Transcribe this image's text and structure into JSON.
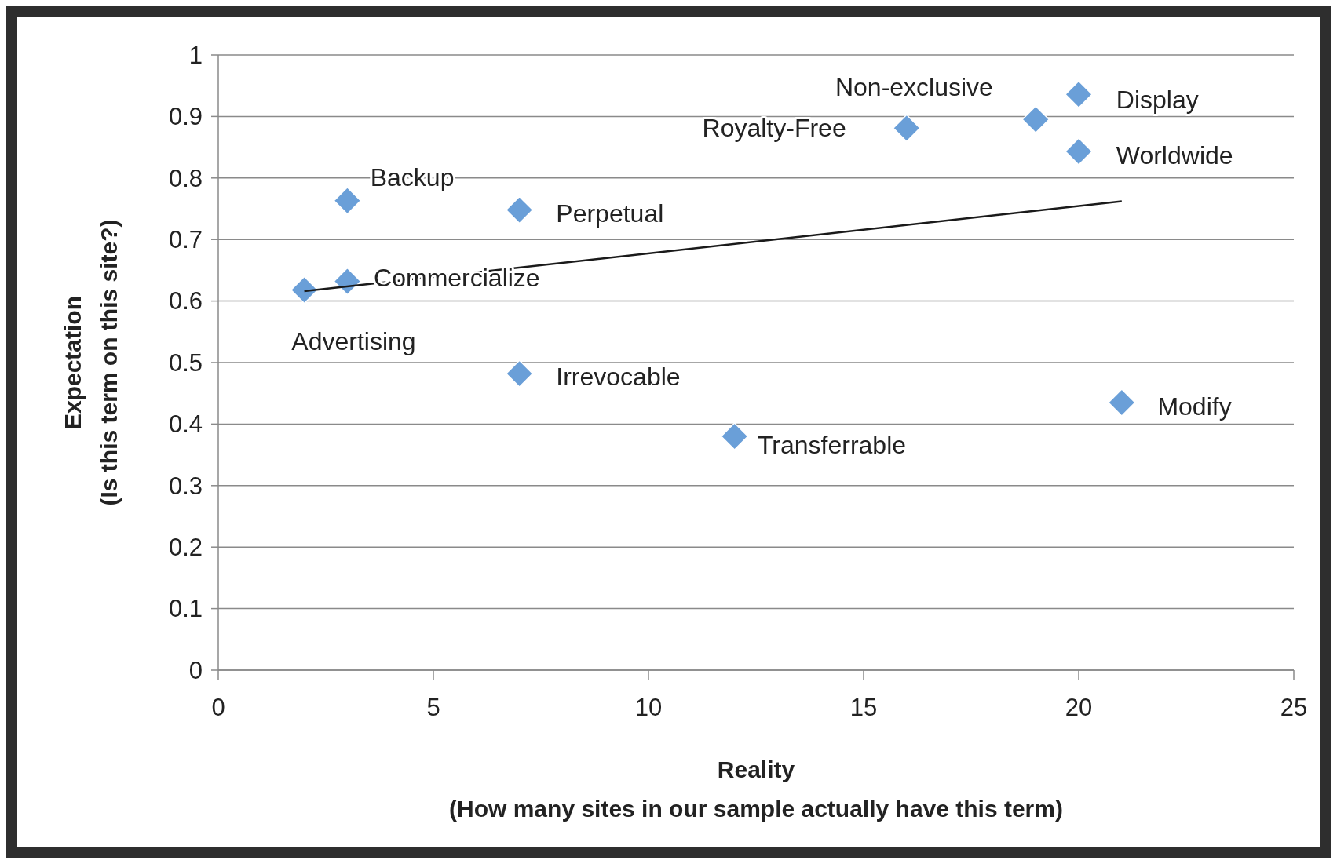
{
  "chart_data": {
    "type": "scatter",
    "xlabel": "Reality\n(How many sites in our sample actually have this term)",
    "ylabel": "Expectation\n(Is this term on this site?)",
    "xlim": [
      0,
      25
    ],
    "xticks": [
      0,
      5,
      10,
      15,
      20,
      25
    ],
    "ylim": [
      0,
      1
    ],
    "yticks": [
      0,
      0.1,
      0.2,
      0.3,
      0.4,
      0.5,
      0.6,
      0.7,
      0.8,
      0.9,
      1
    ],
    "grid": "y",
    "marker": "diamond",
    "series": [
      {
        "type": "scatter",
        "color": "#6a9fd8",
        "x": [
          2,
          3,
          3,
          7,
          7,
          12,
          16,
          19,
          20,
          20,
          21
        ],
        "values": [
          0.618,
          0.632,
          0.763,
          0.748,
          0.482,
          0.38,
          0.881,
          0.895,
          0.936,
          0.843,
          0.435
        ],
        "value_labels": [
          "Advertising",
          "Commercialize",
          "Backup",
          "Perpetual",
          "Irrevocable",
          "Transferrable",
          "Royalty-Free",
          "Non-exclusive",
          "Display",
          "Worldwide",
          "Modify"
        ]
      },
      {
        "type": "line",
        "color": "#1a1a1a",
        "x": [
          2,
          21
        ],
        "values": [
          0.616,
          0.762
        ],
        "line_style": "solid",
        "marker": "none"
      }
    ]
  }
}
